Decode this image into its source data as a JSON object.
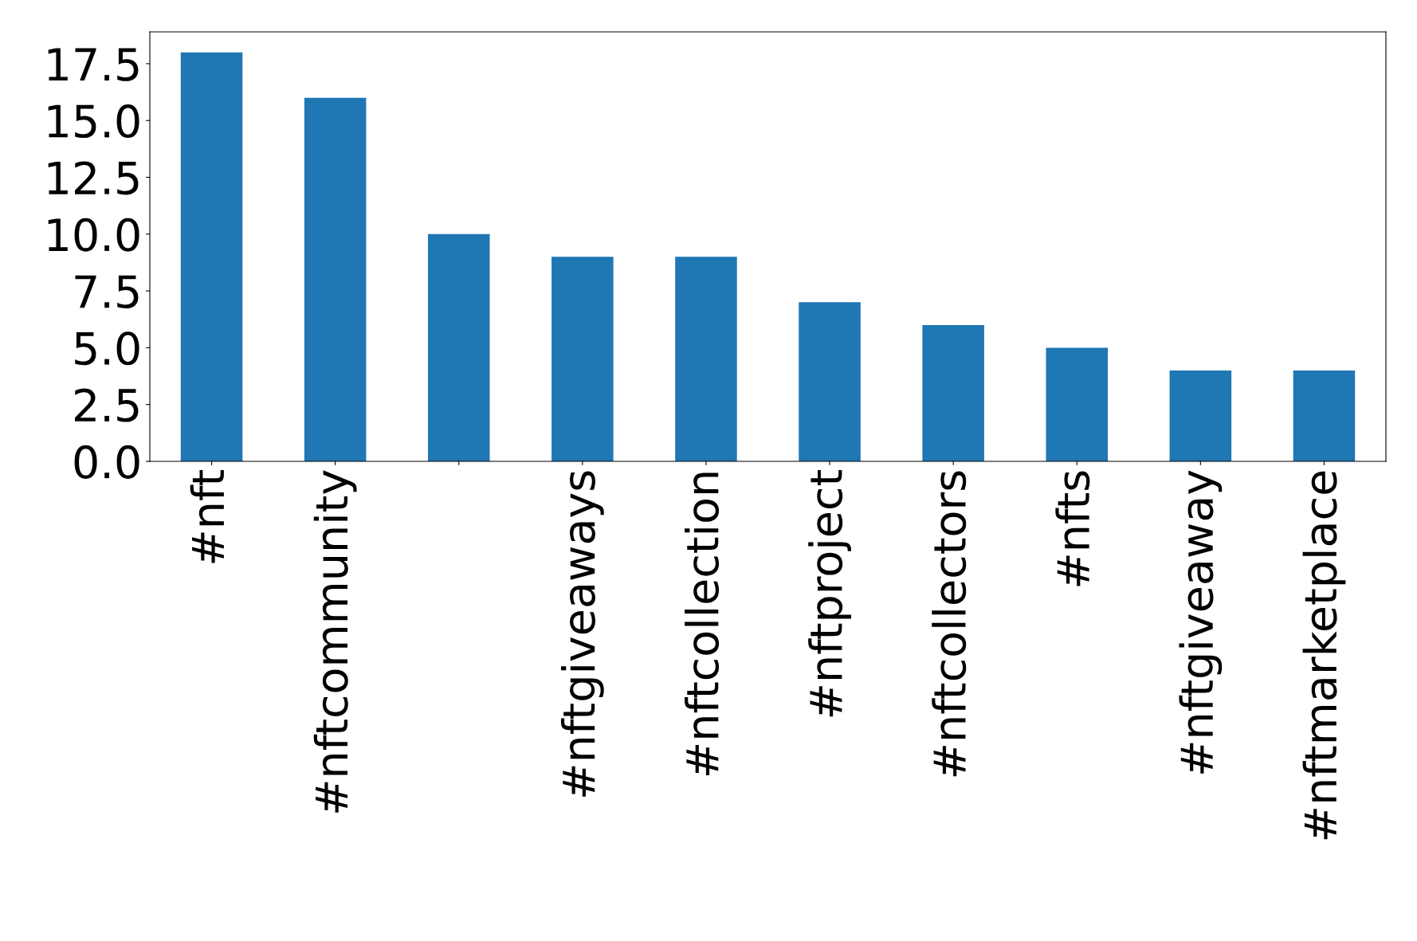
{
  "chart_data": {
    "type": "bar",
    "categories": [
      "#nft",
      "#nftcommunity",
      null,
      "#nftgiveaways",
      "#nftcollection",
      "#nftproject",
      "#nftcollectors",
      "#nfts",
      "#nftgiveaway",
      "#nftmarketplace"
    ],
    "values": [
      18,
      16,
      10,
      9,
      9,
      7,
      6,
      5,
      4,
      4
    ],
    "color": "#1f77b4",
    "ylim": [
      0,
      18.9
    ],
    "yticks": [
      {
        "value": 0,
        "label": "0.0"
      },
      {
        "value": 2.5,
        "label": "2.5"
      },
      {
        "value": 5,
        "label": "5.0"
      },
      {
        "value": 7.5,
        "label": "7.5"
      },
      {
        "value": 10,
        "label": "10.0"
      },
      {
        "value": 12.5,
        "label": "12.5"
      },
      {
        "value": 15,
        "label": "15.0"
      },
      {
        "value": 17.5,
        "label": "17.5"
      }
    ],
    "grid": false,
    "legend": false
  }
}
